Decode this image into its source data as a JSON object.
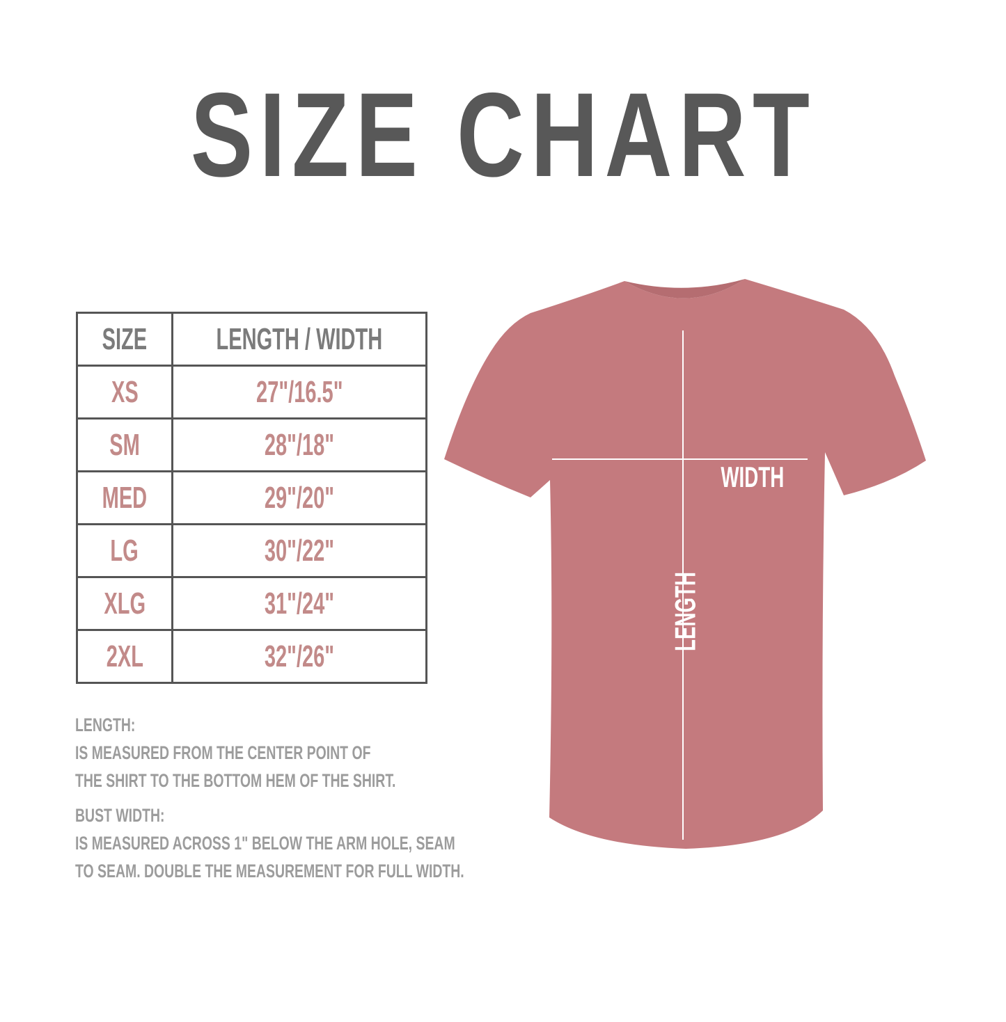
{
  "title": "SIZE CHART",
  "table": {
    "headers": [
      "SIZE",
      "LENGTH / WIDTH"
    ],
    "rows": [
      {
        "size": "XS",
        "measure": "27\"/16.5\""
      },
      {
        "size": "SM",
        "measure": "28\"/18\""
      },
      {
        "size": "MED",
        "measure": "29\"/20\""
      },
      {
        "size": "LG",
        "measure": "30\"/22\""
      },
      {
        "size": "XLG",
        "measure": "31\"/24\""
      },
      {
        "size": "2XL",
        "measure": "32\"/26\""
      }
    ]
  },
  "notes": {
    "length_heading": "LENGTH:",
    "length_line1": "IS MEASURED FROM THE CENTER POINT OF",
    "length_line2": "THE SHIRT TO THE BOTTOM HEM OF THE SHIRT.",
    "width_heading": "BUST WIDTH:",
    "width_line1": "IS MEASURED ACROSS  1\" BELOW THE ARM HOLE, SEAM",
    "width_line2": "TO SEAM. DOUBLE THE MEASUREMENT FOR FULL WIDTH."
  },
  "shirt": {
    "width_label": "WIDTH",
    "length_label": "LENGTH",
    "color": "#c47a7e"
  },
  "colors": {
    "title": "#585858",
    "header_text": "#7b7b7b",
    "value_text": "#c28a89",
    "notes_text": "#9c9c9c"
  }
}
